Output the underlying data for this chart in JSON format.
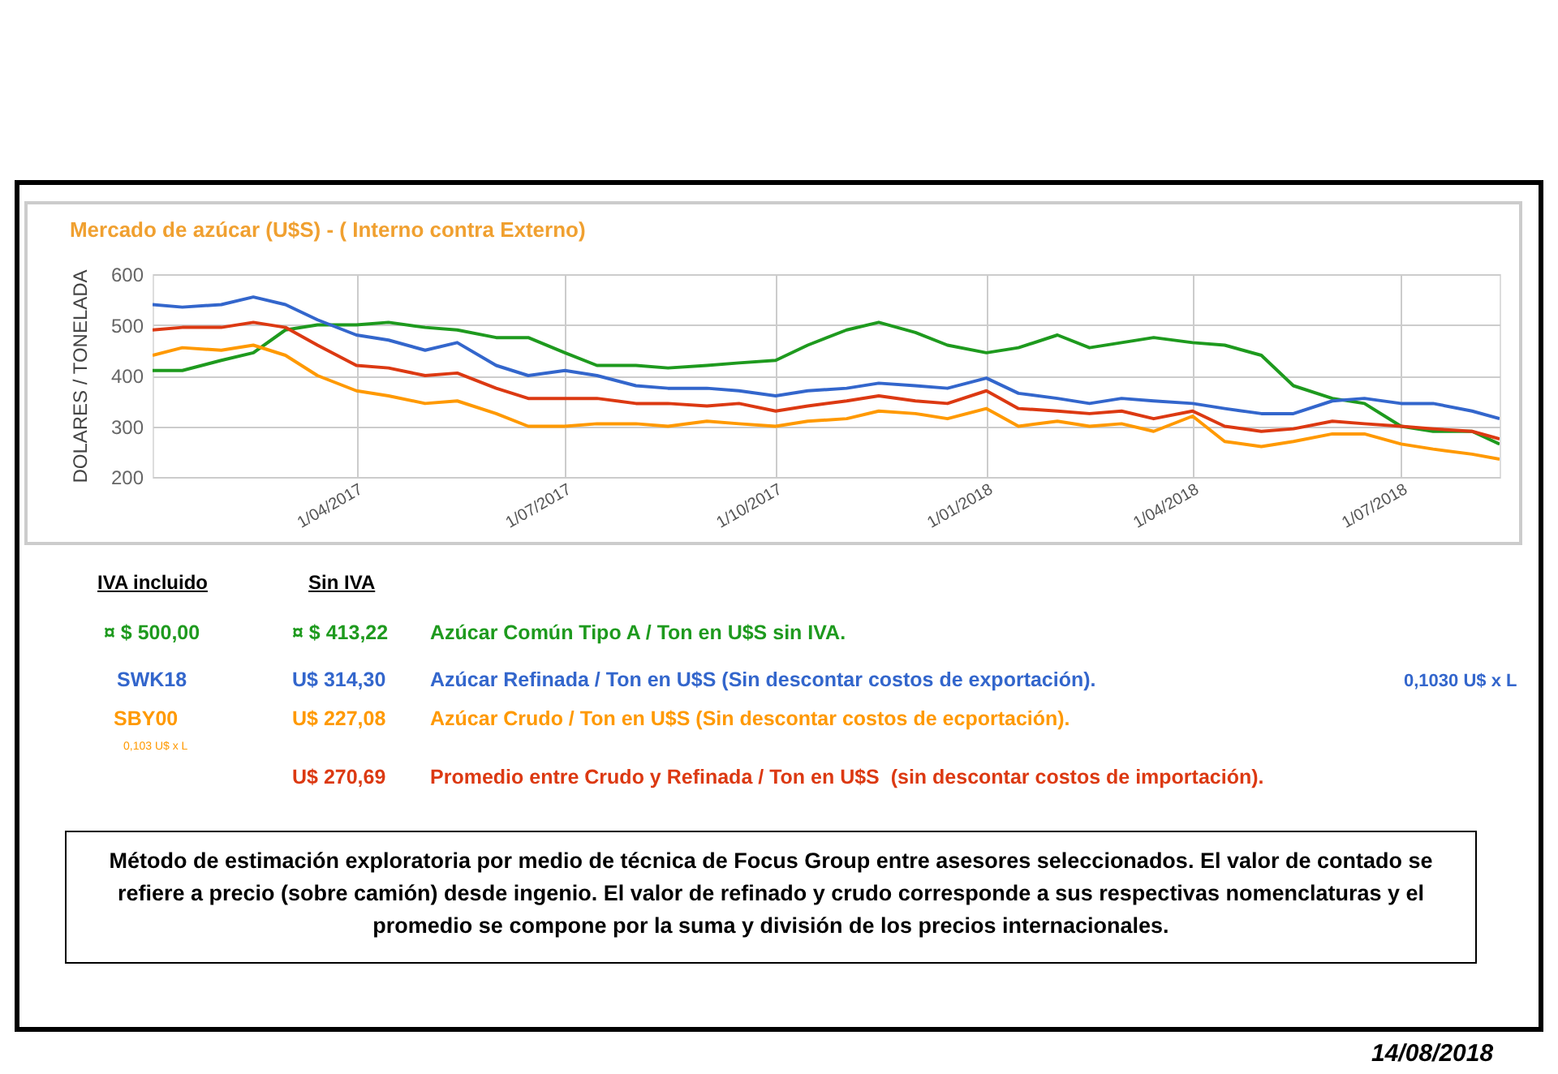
{
  "chart_data": {
    "type": "line",
    "title": "Mercado de azúcar (U$S) - ( Interno contra Externo)",
    "ylabel": "DOLARES / TONELADA",
    "x": [
      "2017-01-02",
      "2017-01-15",
      "2017-02-01",
      "2017-02-15",
      "2017-03-01",
      "2017-03-15",
      "2017-04-01",
      "2017-04-15",
      "2017-05-01",
      "2017-05-15",
      "2017-06-01",
      "2017-06-15",
      "2017-07-01",
      "2017-07-15",
      "2017-08-01",
      "2017-08-15",
      "2017-09-01",
      "2017-09-15",
      "2017-10-01",
      "2017-10-15",
      "2017-11-01",
      "2017-11-15",
      "2017-12-01",
      "2017-12-15",
      "2018-01-01",
      "2018-01-15",
      "2018-02-01",
      "2018-02-15",
      "2018-03-01",
      "2018-03-15",
      "2018-04-01",
      "2018-04-15",
      "2018-05-01",
      "2018-05-15",
      "2018-06-01",
      "2018-06-15",
      "2018-07-01",
      "2018-07-15",
      "2018-08-01",
      "2018-08-13"
    ],
    "series": [
      {
        "color": "#1e9a1e",
        "values": [
          410,
          410,
          430,
          445,
          490,
          500,
          500,
          505,
          495,
          490,
          475,
          475,
          445,
          420,
          420,
          415,
          420,
          425,
          430,
          460,
          490,
          505,
          485,
          460,
          445,
          455,
          480,
          455,
          465,
          475,
          465,
          460,
          440,
          380,
          355,
          345,
          300,
          290,
          290,
          265
        ]
      },
      {
        "color": "#3366cc",
        "values": [
          540,
          535,
          540,
          555,
          540,
          510,
          480,
          470,
          450,
          465,
          420,
          400,
          410,
          400,
          380,
          375,
          375,
          370,
          360,
          370,
          375,
          385,
          380,
          375,
          395,
          365,
          355,
          345,
          355,
          350,
          345,
          335,
          325,
          325,
          350,
          355,
          345,
          345,
          330,
          315
        ]
      },
      {
        "color": "#ff9900",
        "values": [
          440,
          455,
          450,
          460,
          440,
          400,
          370,
          360,
          345,
          350,
          325,
          300,
          300,
          305,
          305,
          300,
          310,
          305,
          300,
          310,
          315,
          330,
          325,
          315,
          335,
          300,
          310,
          300,
          305,
          290,
          320,
          270,
          260,
          270,
          285,
          285,
          265,
          255,
          245,
          235
        ]
      },
      {
        "color": "#dc3912",
        "values": [
          490,
          495,
          495,
          505,
          495,
          460,
          420,
          415,
          400,
          405,
          375,
          355,
          355,
          355,
          345,
          345,
          340,
          345,
          330,
          340,
          350,
          360,
          350,
          345,
          370,
          335,
          330,
          325,
          330,
          315,
          330,
          300,
          290,
          295,
          310,
          305,
          300,
          295,
          290,
          275
        ]
      }
    ],
    "xlim": [
      "2017-01-02",
      "2018-08-13"
    ],
    "xticks": [
      {
        "value": "2017-04-01",
        "label": "1/04/2017"
      },
      {
        "value": "2017-07-01",
        "label": "1/07/2017"
      },
      {
        "value": "2017-10-01",
        "label": "1/10/2017"
      },
      {
        "value": "2018-01-01",
        "label": "1/01/2018"
      },
      {
        "value": "2018-04-01",
        "label": "1/04/2018"
      },
      {
        "value": "2018-07-01",
        "label": "1/07/2018"
      }
    ],
    "ylim": [
      200,
      600
    ],
    "yticks": [
      200,
      300,
      400,
      500,
      600
    ],
    "grid": true,
    "annotations": [
      "IVA incluido",
      "Sin IVA",
      "¤ $ 500,00",
      "¤ $ 413,22",
      "Azúcar Común Tipo A / Ton en U$S sin IVA.",
      "SWK18",
      "U$ 314,30",
      "Azúcar Refinada / Ton en U$S (Sin descontar costos de exportación).",
      "0,1030 U$ x L",
      "SBY00",
      "0,103 U$ x L",
      "U$ 227,08",
      "Azúcar Crudo / Ton en U$S (Sin descontar costos de ecportación).",
      "U$ 270,69",
      "Promedio entre Crudo y Refinada / Ton en U$S  (sin descontar costos de importación).",
      "Método de estimación exploratoria por medio de técnica de Focus Group entre asesores seleccionados. El valor de contado se refiere a precio (sobre camión) desde ingenio. El valor de refinado y crudo corresponde a sus respectivas nomenclaturas y el promedio se compone por la suma y división de los precios internacionales.",
      "14/08/2018"
    ]
  }
}
